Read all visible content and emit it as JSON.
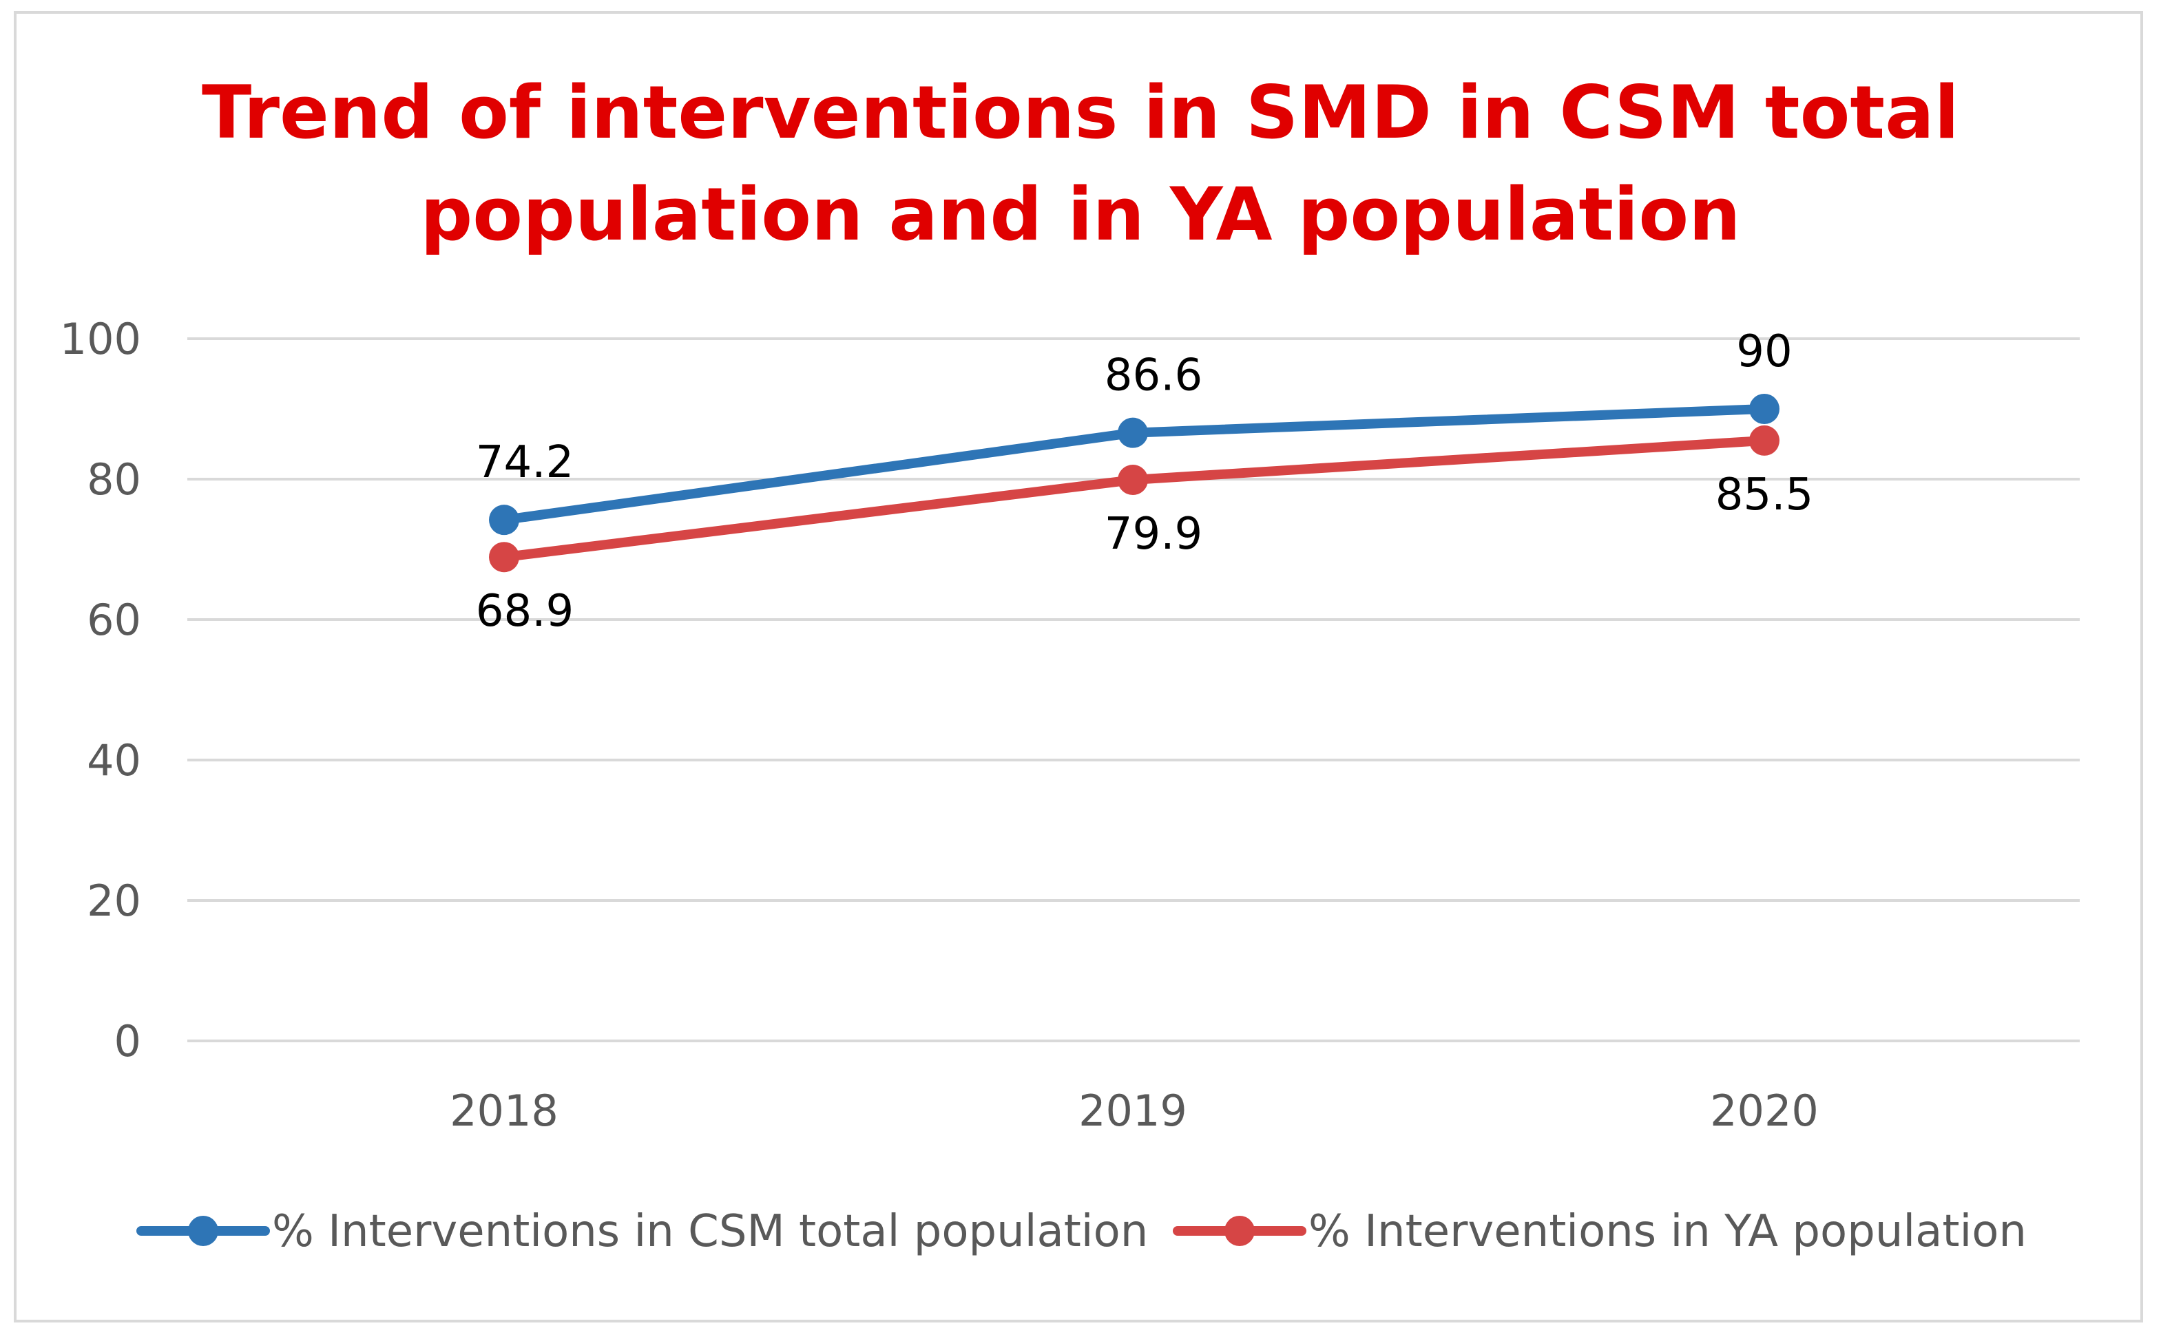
{
  "chart_data": {
    "type": "line",
    "title_lines": [
      "Trend of interventions in SMD in CSM total",
      "population and in YA population"
    ],
    "categories": [
      "2018",
      "2019",
      "2020"
    ],
    "ylim": [
      0,
      100
    ],
    "yticks": [
      0,
      20,
      40,
      60,
      80,
      100
    ],
    "grid": true,
    "legend_position": "bottom",
    "series": [
      {
        "name": "% Interventions in CSM total population",
        "values": [
          74.2,
          86.6,
          90
        ],
        "color": "#2e75b6",
        "label_position": "above"
      },
      {
        "name": "% Interventions in YA population",
        "values": [
          68.9,
          79.9,
          85.5
        ],
        "color": "#d64545",
        "label_position": "below"
      }
    ]
  }
}
